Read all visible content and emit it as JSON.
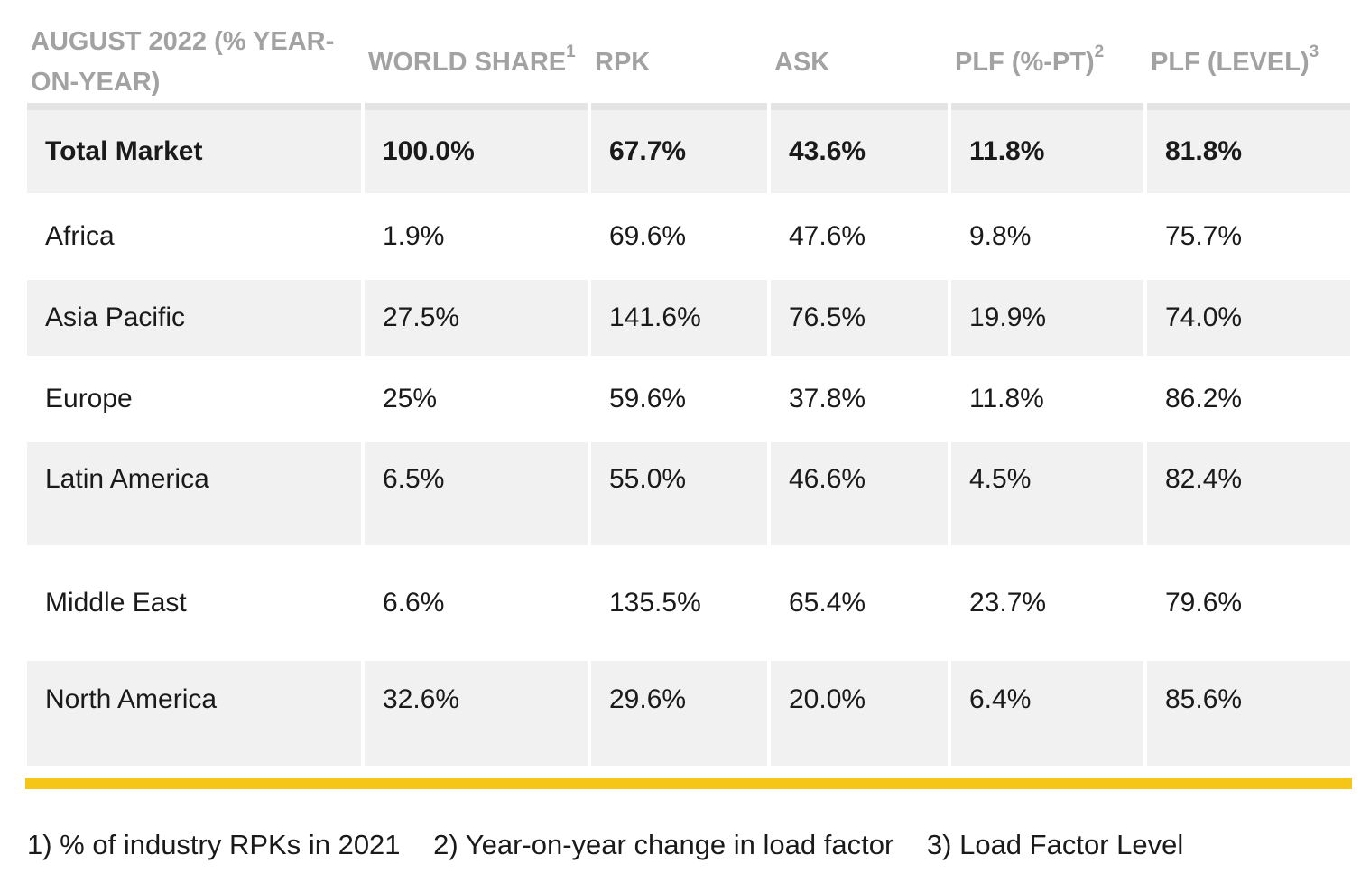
{
  "table": {
    "headers": [
      {
        "text": "AUGUST 2022 (% YEAR-ON-YEAR)",
        "sup": ""
      },
      {
        "text": "WORLD SHARE",
        "sup": "1"
      },
      {
        "text": "RPK",
        "sup": ""
      },
      {
        "text": "ASK",
        "sup": ""
      },
      {
        "text": "PLF (%-PT)",
        "sup": "2"
      },
      {
        "text": "PLF (LEVEL)",
        "sup": "3"
      }
    ],
    "rows": [
      {
        "region": "Total Market",
        "world_share": "100.0%",
        "rpk": "67.7%",
        "ask": "43.6%",
        "plf_pt": "11.8%",
        "plf_level": "81.8%"
      },
      {
        "region": "Africa",
        "world_share": "1.9%",
        "rpk": "69.6%",
        "ask": "47.6%",
        "plf_pt": "9.8%",
        "plf_level": "75.7%"
      },
      {
        "region": "Asia Pacific",
        "world_share": "27.5%",
        "rpk": "141.6%",
        "ask": "76.5%",
        "plf_pt": "19.9%",
        "plf_level": "74.0%"
      },
      {
        "region": "Europe",
        "world_share": "25%",
        "rpk": "59.6%",
        "ask": "37.8%",
        "plf_pt": "11.8%",
        "plf_level": "86.2%"
      },
      {
        "region": "Latin America",
        "world_share": "6.5%",
        "rpk": "55.0%",
        "ask": "46.6%",
        "plf_pt": "4.5%",
        "plf_level": "82.4%"
      },
      {
        "region": "Middle East",
        "world_share": "6.6%",
        "rpk": "135.5%",
        "ask": "65.4%",
        "plf_pt": "23.7%",
        "plf_level": "79.6%"
      },
      {
        "region": "North America",
        "world_share": "32.6%",
        "rpk": "29.6%",
        "ask": "20.0%",
        "plf_pt": "6.4%",
        "plf_level": "85.6%"
      }
    ]
  },
  "footnotes": [
    "1) % of industry RPKs in 2021",
    "2) Year-on-year change in load factor",
    "3) Load Factor Level"
  ],
  "colors": {
    "header_text": "#a2a2a2",
    "row_shade": "#f1f1f1",
    "accent_bar": "#f5c518"
  }
}
